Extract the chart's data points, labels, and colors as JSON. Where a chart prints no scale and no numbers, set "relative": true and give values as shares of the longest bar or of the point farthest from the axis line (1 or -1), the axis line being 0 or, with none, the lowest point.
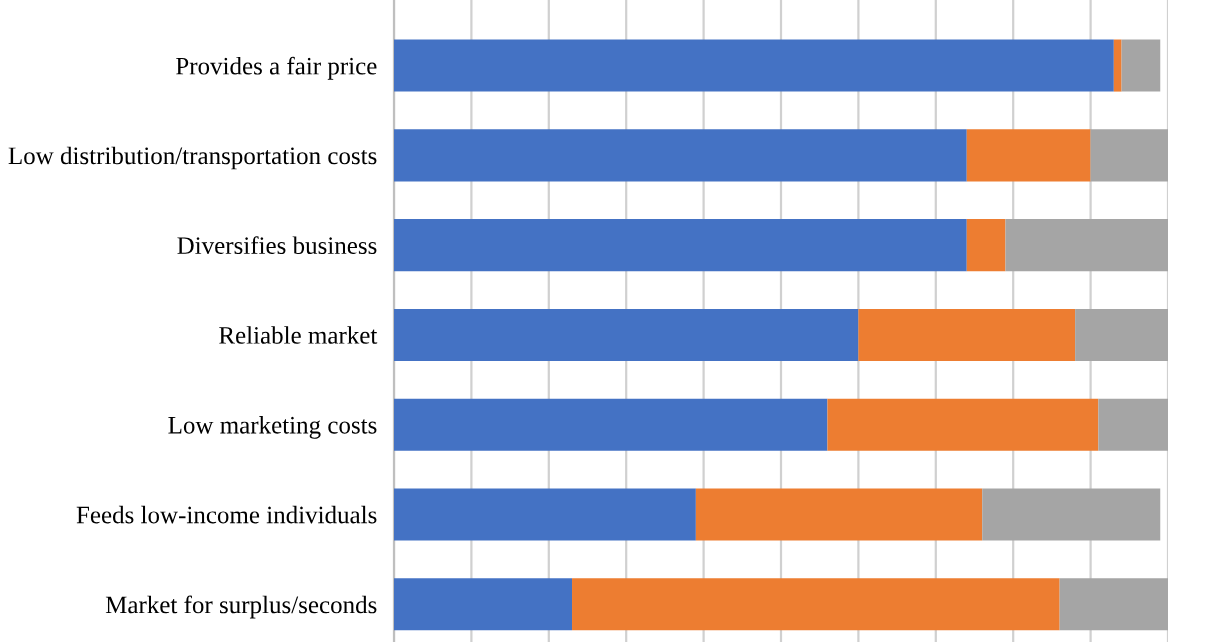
{
  "chart_data": {
    "type": "bar",
    "orientation": "horizontal",
    "stacked": true,
    "relative": true,
    "grid": "x",
    "categories": [
      "Provides a fair price",
      "Low distribution/transportation costs",
      "Diversifies business",
      "Reliable market",
      "Low marketing costs",
      "Feeds low-income individuals",
      "Market for surplus/seconds"
    ],
    "series": [
      {
        "color": "#4472c4",
        "values": [
          0.93,
          0.74,
          0.74,
          0.6,
          0.56,
          0.39,
          0.23
        ]
      },
      {
        "color": "#ed7d31",
        "values": [
          0.01,
          0.16,
          0.05,
          0.28,
          0.35,
          0.37,
          0.63
        ]
      },
      {
        "color": "#a5a5a5",
        "values": [
          0.05,
          0.1,
          0.21,
          0.12,
          0.09,
          0.23,
          0.14
        ]
      }
    ]
  }
}
